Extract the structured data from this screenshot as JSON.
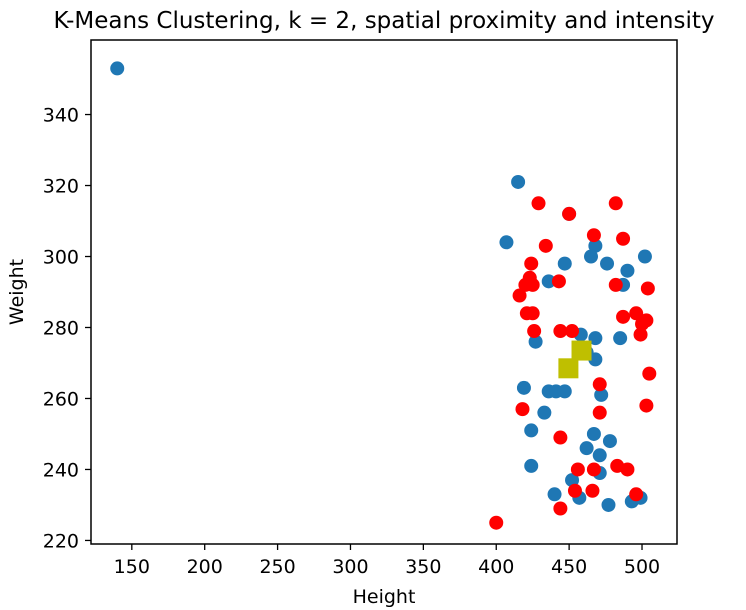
{
  "chart_data": {
    "type": "scatter",
    "title": "K-Means Clustering, k = 2, spatial proximity and intensity",
    "xlabel": "Height",
    "ylabel": "Weight",
    "xlim": [
      122,
      524
    ],
    "ylim": [
      219,
      361
    ],
    "xticks": [
      150,
      200,
      250,
      300,
      350,
      400,
      450,
      500
    ],
    "yticks": [
      220,
      240,
      260,
      280,
      300,
      320,
      340
    ],
    "grid": false,
    "legend": "none",
    "series": [
      {
        "color": "#1f77b4",
        "marker": "circle",
        "points": [
          [
            140,
            353
          ],
          [
            415,
            321
          ],
          [
            407,
            304
          ],
          [
            450,
            312
          ],
          [
            468,
            303
          ],
          [
            465,
            300
          ],
          [
            447,
            298
          ],
          [
            476,
            298
          ],
          [
            502,
            300
          ],
          [
            490,
            296
          ],
          [
            436,
            293
          ],
          [
            487,
            292
          ],
          [
            458,
            278
          ],
          [
            468,
            277
          ],
          [
            485,
            277
          ],
          [
            427,
            276
          ],
          [
            462,
            273
          ],
          [
            468,
            271
          ],
          [
            419,
            263
          ],
          [
            436,
            262
          ],
          [
            441,
            262
          ],
          [
            447,
            262
          ],
          [
            472,
            261
          ],
          [
            433,
            256
          ],
          [
            424,
            251
          ],
          [
            467,
            250
          ],
          [
            478,
            248
          ],
          [
            462,
            246
          ],
          [
            471,
            244
          ],
          [
            424,
            241
          ],
          [
            471,
            239
          ],
          [
            452,
            237
          ],
          [
            440,
            233
          ],
          [
            457,
            232
          ],
          [
            493,
            231
          ],
          [
            499,
            232
          ],
          [
            477,
            230
          ]
        ]
      },
      {
        "color": "#ff0000",
        "marker": "circle",
        "points": [
          [
            482,
            315
          ],
          [
            429,
            315
          ],
          [
            450,
            312
          ],
          [
            467,
            306
          ],
          [
            487,
            305
          ],
          [
            434,
            303
          ],
          [
            424,
            298
          ],
          [
            423,
            294
          ],
          [
            425,
            292
          ],
          [
            420,
            292
          ],
          [
            443,
            293
          ],
          [
            482,
            292
          ],
          [
            504,
            291
          ],
          [
            416,
            289
          ],
          [
            421,
            284
          ],
          [
            425,
            284
          ],
          [
            496,
            284
          ],
          [
            487,
            283
          ],
          [
            503,
            282
          ],
          [
            500,
            281
          ],
          [
            426,
            279
          ],
          [
            444,
            279
          ],
          [
            452,
            279
          ],
          [
            499,
            278
          ],
          [
            505,
            267
          ],
          [
            471,
            264
          ],
          [
            418,
            257
          ],
          [
            503,
            258
          ],
          [
            471,
            256
          ],
          [
            444,
            249
          ],
          [
            456,
            240
          ],
          [
            467,
            240
          ],
          [
            483,
            241
          ],
          [
            490,
            240
          ],
          [
            454,
            234
          ],
          [
            466,
            234
          ],
          [
            496,
            233
          ],
          [
            444,
            229
          ],
          [
            400,
            225
          ]
        ]
      },
      {
        "color": "#bfbf00",
        "marker": "square",
        "points": [
          [
            458.5,
            273.5
          ],
          [
            449.5,
            268.5
          ]
        ]
      }
    ]
  }
}
